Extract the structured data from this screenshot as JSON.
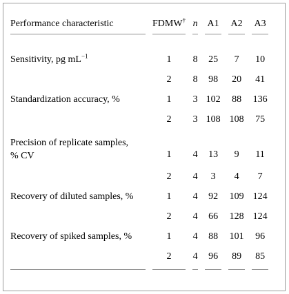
{
  "header": {
    "characteristic": "Performance characteristic",
    "fdmw": "FDMW",
    "fdmw_mark": "†",
    "n": "n",
    "a1": "A1",
    "a2": "A2",
    "a3": "A3"
  },
  "rows": [
    {
      "label": "Sensitivity, pg mL",
      "label_sup": "−1",
      "fdmw": "1",
      "n": "8",
      "a1": "25",
      "a2": "7",
      "a3": "10"
    },
    {
      "label": "",
      "fdmw": "2",
      "n": "8",
      "a1": "98",
      "a2": "20",
      "a3": "41"
    },
    {
      "label": "Standardization accuracy, %",
      "fdmw": "1",
      "n": "3",
      "a1": "102",
      "a2": "88",
      "a3": "136"
    },
    {
      "label": "",
      "fdmw": "2",
      "n": "3",
      "a1": "108",
      "a2": "108",
      "a3": "75"
    },
    {
      "label_line1": "Precision of replicate samples,",
      "label_line2": "% CV",
      "fdmw": "1",
      "n": "4",
      "a1": "13",
      "a2": "9",
      "a3": "11"
    },
    {
      "label": "",
      "fdmw": "2",
      "n": "4",
      "a1": "3",
      "a2": "4",
      "a3": "7"
    },
    {
      "label": "Recovery of diluted samples, %",
      "fdmw": "1",
      "n": "4",
      "a1": "92",
      "a2": "109",
      "a3": "124"
    },
    {
      "label": "",
      "fdmw": "2",
      "n": "4",
      "a1": "66",
      "a2": "128",
      "a3": "124"
    },
    {
      "label": "Recovery of spiked samples, %",
      "fdmw": "1",
      "n": "4",
      "a1": "88",
      "a2": "101",
      "a3": "96"
    },
    {
      "label": "",
      "fdmw": "2",
      "n": "4",
      "a1": "96",
      "a2": "89",
      "a3": "85"
    }
  ]
}
